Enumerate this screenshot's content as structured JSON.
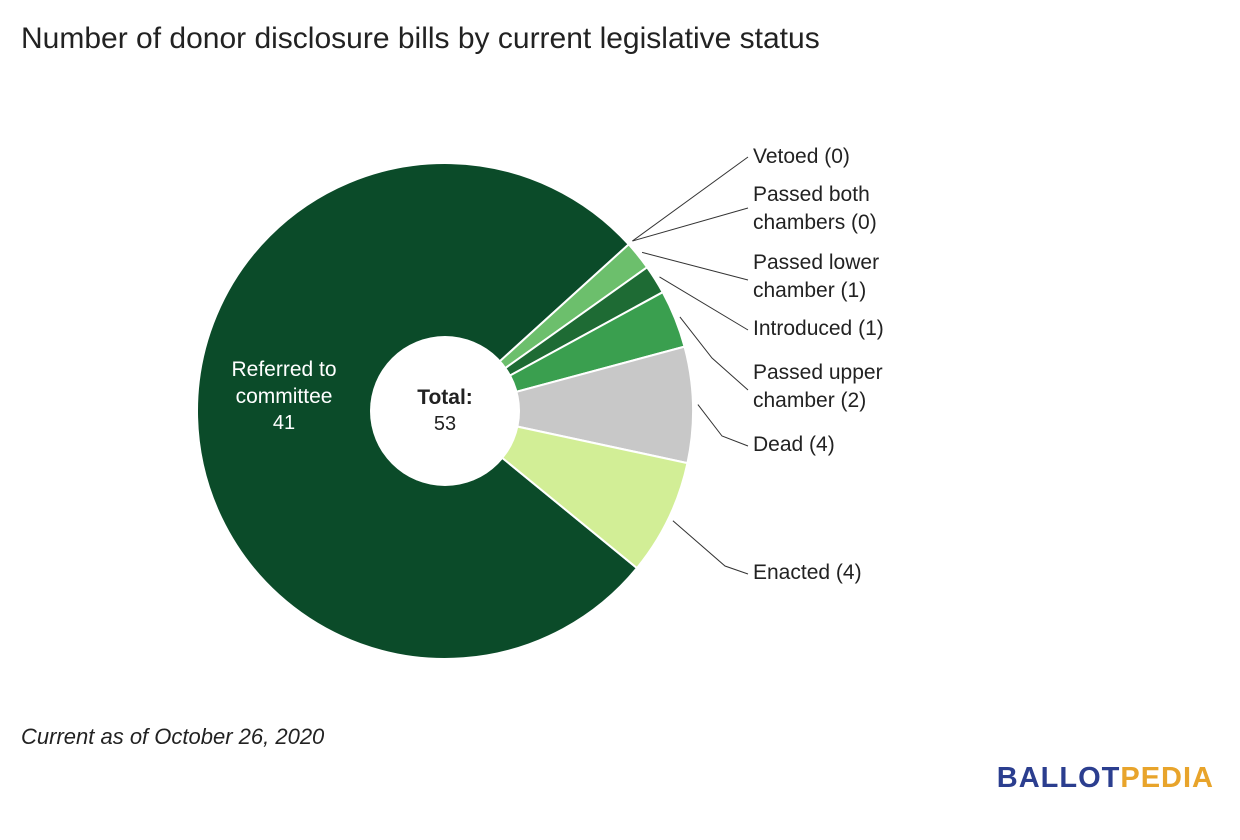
{
  "chart_data": {
    "type": "pie",
    "title": "Number of donor disclosure bills by current legislative status",
    "center_label": {
      "name": "Total:",
      "value": "53"
    },
    "slices": [
      {
        "label": "Referred to committee",
        "value": 41,
        "display": "Referred to committee",
        "value_text": "41",
        "color": "#0b4b29",
        "label_position": "inside"
      },
      {
        "label": "Vetoed",
        "value": 0,
        "display": "Vetoed (0)",
        "color": "#2e8b4b",
        "label_position": "outside"
      },
      {
        "label": "Passed both chambers",
        "value": 0,
        "display": "Passed both chambers (0)",
        "color": "#2e8b4b",
        "label_position": "outside"
      },
      {
        "label": "Passed lower chamber",
        "value": 1,
        "display": "Passed lower chamber (1)",
        "color": "#6cbf6c",
        "label_position": "outside"
      },
      {
        "label": "Introduced",
        "value": 1,
        "display": "Introduced (1)",
        "color": "#1e6b34",
        "label_position": "outside"
      },
      {
        "label": "Passed upper chamber",
        "value": 2,
        "display": "Passed upper chamber (2)",
        "color": "#3a9f4f",
        "label_position": "outside"
      },
      {
        "label": "Dead",
        "value": 4,
        "display": "Dead (4)",
        "color": "#c8c8c8",
        "label_position": "outside"
      },
      {
        "label": "Enacted",
        "value": 4,
        "display": "Enacted (4)",
        "color": "#d2ee96",
        "label_position": "outside"
      }
    ]
  },
  "legend": {
    "vetoed": [
      "Vetoed (0)"
    ],
    "passed_both": [
      "Passed both",
      "chambers (0)"
    ],
    "passed_lower": [
      "Passed lower",
      "chamber (1)"
    ],
    "introduced": [
      "Introduced (1)"
    ],
    "passed_upper": [
      "Passed upper",
      "chamber (2)"
    ],
    "dead": [
      "Dead (4)"
    ],
    "enacted": [
      "Enacted (4)"
    ]
  },
  "inner_label": {
    "line1": "Referred to",
    "line2": "committee",
    "value": "41"
  },
  "footnote": "Current as of October 26, 2020",
  "logo": {
    "part1": "BALLOT",
    "part2": "PEDIA"
  }
}
